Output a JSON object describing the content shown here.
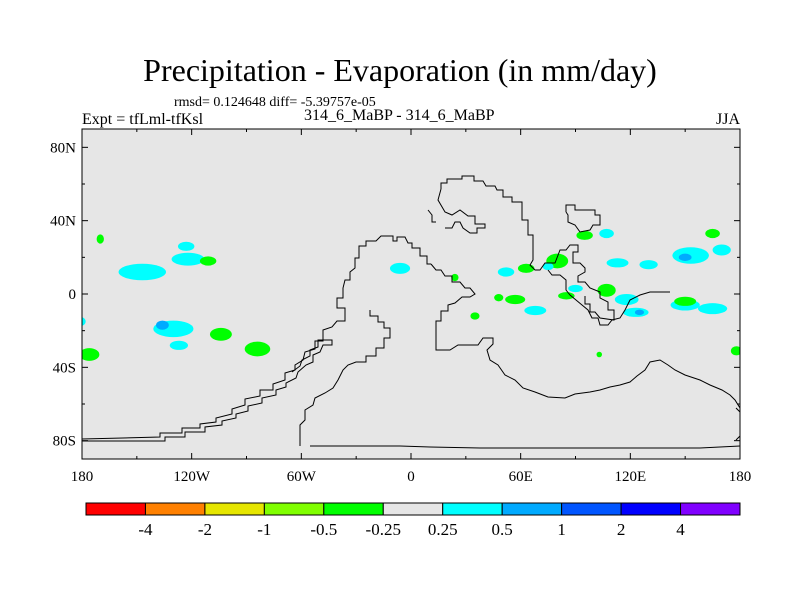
{
  "chart_data": {
    "type": "heatmap",
    "title": "Precipitation - Evaporation (in mm/day)",
    "stats": "rmsd= 0.124648 diff= -5.39757e-05",
    "left_label": "Expt = tfLml-tfKsl",
    "center_label": "314_6_MaBP - 314_6_MaBP",
    "right_label": "JJA",
    "x_range": [
      -180,
      180
    ],
    "y_range": [
      -90,
      90
    ],
    "x_ticks": [
      {
        "value": -180,
        "label": "180"
      },
      {
        "value": -120,
        "label": "120W"
      },
      {
        "value": -60,
        "label": "60W"
      },
      {
        "value": 0,
        "label": "0"
      },
      {
        "value": 60,
        "label": "60E"
      },
      {
        "value": 120,
        "label": "120E"
      },
      {
        "value": 180,
        "label": "180"
      }
    ],
    "y_ticks": [
      {
        "value": 80,
        "label": "80N"
      },
      {
        "value": 40,
        "label": "40N"
      },
      {
        "value": 0,
        "label": "0"
      },
      {
        "value": -40,
        "label": "40S"
      },
      {
        "value": -80,
        "label": "80S"
      }
    ],
    "background_color": "#e6e6e6",
    "colorbar": {
      "colors": [
        "#ff0000",
        "#ff8000",
        "#e6e600",
        "#80ff00",
        "#00ff00",
        "#e6e6e6",
        "#00ffff",
        "#00aaff",
        "#0055ff",
        "#0000ff",
        "#8000ff"
      ],
      "labels": [
        "-4",
        "-2",
        "-1",
        "-0.5",
        "-0.25",
        "0.25",
        "0.5",
        "1",
        "2",
        "4"
      ]
    },
    "anomalies": [
      {
        "lon": -170,
        "lat": 30,
        "w": 4,
        "h": 5,
        "level": "-0.25"
      },
      {
        "lon": -147,
        "lat": 12,
        "w": 26,
        "h": 9,
        "level": "0.25"
      },
      {
        "lon": -122,
        "lat": 19,
        "w": 18,
        "h": 7,
        "level": "0.25"
      },
      {
        "lon": -111,
        "lat": 18,
        "w": 9,
        "h": 5,
        "level": "-0.25"
      },
      {
        "lon": -123,
        "lat": 26,
        "w": 9,
        "h": 5,
        "level": "0.25"
      },
      {
        "lon": -181,
        "lat": -15,
        "w": 6,
        "h": 5,
        "level": "0.25"
      },
      {
        "lon": -130,
        "lat": -19,
        "w": 22,
        "h": 9,
        "level": "0.25"
      },
      {
        "lon": -136,
        "lat": -17,
        "w": 7,
        "h": 5,
        "level": "0.5"
      },
      {
        "lon": -127,
        "lat": -28,
        "w": 10,
        "h": 5,
        "level": "0.25"
      },
      {
        "lon": -104,
        "lat": -22,
        "w": 12,
        "h": 7,
        "level": "-0.25"
      },
      {
        "lon": -84,
        "lat": -30,
        "w": 14,
        "h": 8,
        "level": "-0.25"
      },
      {
        "lon": -176,
        "lat": -33,
        "w": 11,
        "h": 7,
        "level": "-0.25"
      },
      {
        "lon": -6,
        "lat": 14,
        "w": 11,
        "h": 6,
        "level": "0.25"
      },
      {
        "lon": 52,
        "lat": 12,
        "w": 9,
        "h": 5,
        "level": "0.25"
      },
      {
        "lon": 63,
        "lat": 14,
        "w": 9,
        "h": 5,
        "level": "-0.25"
      },
      {
        "lon": 80,
        "lat": 18,
        "w": 12,
        "h": 8,
        "level": "-0.25"
      },
      {
        "lon": 75,
        "lat": 15,
        "w": 6,
        "h": 4,
        "level": "0.25"
      },
      {
        "lon": 95,
        "lat": 32,
        "w": 9,
        "h": 5,
        "level": "-0.25"
      },
      {
        "lon": 107,
        "lat": 33,
        "w": 8,
        "h": 5,
        "level": "0.25"
      },
      {
        "lon": 113,
        "lat": 17,
        "w": 12,
        "h": 5,
        "level": "0.25"
      },
      {
        "lon": 130,
        "lat": 16,
        "w": 10,
        "h": 5,
        "level": "0.25"
      },
      {
        "lon": 153,
        "lat": 21,
        "w": 20,
        "h": 9,
        "level": "0.25"
      },
      {
        "lon": 150,
        "lat": 20,
        "w": 7,
        "h": 4,
        "level": "0.5"
      },
      {
        "lon": 170,
        "lat": 24,
        "w": 10,
        "h": 6,
        "level": "0.25"
      },
      {
        "lon": 165,
        "lat": 33,
        "w": 8,
        "h": 5,
        "level": "-0.25"
      },
      {
        "lon": 107,
        "lat": 2,
        "w": 10,
        "h": 7,
        "level": "-0.25"
      },
      {
        "lon": 90,
        "lat": 3,
        "w": 8,
        "h": 4,
        "level": "0.25"
      },
      {
        "lon": 57,
        "lat": -3,
        "w": 11,
        "h": 5,
        "level": "-0.25"
      },
      {
        "lon": 48,
        "lat": -2,
        "w": 5,
        "h": 4,
        "level": "-0.25"
      },
      {
        "lon": 35,
        "lat": -12,
        "w": 5,
        "h": 4,
        "level": "-0.25"
      },
      {
        "lon": 68,
        "lat": -9,
        "w": 12,
        "h": 5,
        "level": "0.25"
      },
      {
        "lon": 85,
        "lat": -1,
        "w": 9,
        "h": 4,
        "level": "-0.25"
      },
      {
        "lon": 118,
        "lat": -3,
        "w": 13,
        "h": 6,
        "level": "0.25"
      },
      {
        "lon": 123,
        "lat": -10,
        "w": 14,
        "h": 5,
        "level": "0.25"
      },
      {
        "lon": 125,
        "lat": -10,
        "w": 5,
        "h": 3,
        "level": "0.5"
      },
      {
        "lon": 150,
        "lat": -6,
        "w": 16,
        "h": 6,
        "level": "0.25"
      },
      {
        "lon": 165,
        "lat": -8,
        "w": 16,
        "h": 6,
        "level": "0.25"
      },
      {
        "lon": 150,
        "lat": -4,
        "w": 12,
        "h": 5,
        "level": "-0.25"
      },
      {
        "lon": 178,
        "lat": -31,
        "w": 6,
        "h": 5,
        "level": "-0.25"
      },
      {
        "lon": 103,
        "lat": -33,
        "w": 3,
        "h": 3,
        "level": "-0.25"
      },
      {
        "lon": 24,
        "lat": 9,
        "w": 4,
        "h": 4,
        "level": "-0.25"
      }
    ]
  }
}
